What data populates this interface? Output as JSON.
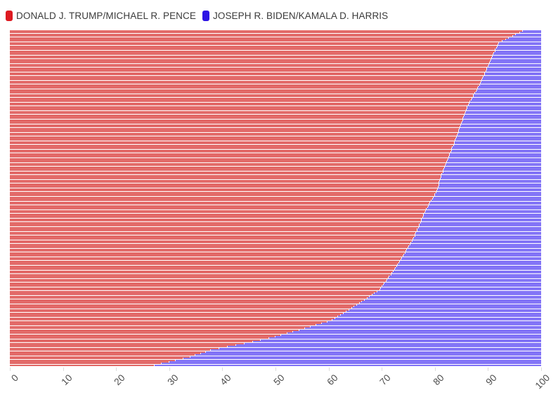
{
  "chart_data": {
    "type": "bar",
    "variant": "100-percent-stacked horizontal bars, one thin bar per row, sorted descending by Trump share",
    "title": "",
    "xlabel": "",
    "ylabel": "",
    "grid": false,
    "legend_position": "top-left",
    "row_count": 200,
    "x_axis": {
      "min": 0,
      "max": 100,
      "tick_step": 10,
      "tick_labels": [
        "0",
        "10",
        "20",
        "30",
        "40",
        "50",
        "60",
        "70",
        "80",
        "90",
        "100"
      ]
    },
    "series": [
      {
        "name": "DONALD J. TRUMP/MICHAEL R. PENCE",
        "color": "#dd1a21",
        "bar_fill": "#ed837f",
        "bar_stroke": "#c21f25",
        "values": [
          96.5,
          95.9,
          95.2,
          94.6,
          93.9,
          93.3,
          92.6,
          92.0,
          91.9,
          91.7,
          91.6,
          91.4,
          91.3,
          91.1,
          91.0,
          90.8,
          90.7,
          90.6,
          90.4,
          90.3,
          90.1,
          90.0,
          89.8,
          89.7,
          89.6,
          89.4,
          89.3,
          89.1,
          89.0,
          88.8,
          88.7,
          88.5,
          88.4,
          88.2,
          88.0,
          87.9,
          87.7,
          87.5,
          87.3,
          87.2,
          87.0,
          86.8,
          86.6,
          86.5,
          86.3,
          86.1,
          86.0,
          85.9,
          85.8,
          85.6,
          85.5,
          85.4,
          85.3,
          85.2,
          85.1,
          85.0,
          84.8,
          84.7,
          84.6,
          84.5,
          84.4,
          84.3,
          84.2,
          84.0,
          83.9,
          83.8,
          83.7,
          83.6,
          83.5,
          83.3,
          83.2,
          83.1,
          83.0,
          82.8,
          82.7,
          82.6,
          82.5,
          82.3,
          82.2,
          82.1,
          82.0,
          81.8,
          81.7,
          81.6,
          81.5,
          81.3,
          81.2,
          81.1,
          81.0,
          80.9,
          80.8,
          80.8,
          80.7,
          80.6,
          80.5,
          80.4,
          80.2,
          80.0,
          79.9,
          79.7,
          79.5,
          79.3,
          79.1,
          78.9,
          78.8,
          78.6,
          78.4,
          78.2,
          78.1,
          77.9,
          77.8,
          77.7,
          77.5,
          77.4,
          77.3,
          77.1,
          77.0,
          76.9,
          76.7,
          76.6,
          76.4,
          76.3,
          76.2,
          76.0,
          75.9,
          75.7,
          75.5,
          75.3,
          75.1,
          74.9,
          74.7,
          74.5,
          74.4,
          74.2,
          74.0,
          73.8,
          73.6,
          73.4,
          73.2,
          73.0,
          72.8,
          72.6,
          72.4,
          72.1,
          71.9,
          71.7,
          71.4,
          71.2,
          71.0,
          70.8,
          70.5,
          70.3,
          70.1,
          69.8,
          69.6,
          69.1,
          68.6,
          68.2,
          67.7,
          67.2,
          66.7,
          66.2,
          65.8,
          65.3,
          64.8,
          64.3,
          63.8,
          63.3,
          62.8,
          62.2,
          61.7,
          61.2,
          60.7,
          59.7,
          58.6,
          57.6,
          56.5,
          55.5,
          54.4,
          53.3,
          52.2,
          51.0,
          49.9,
          48.8,
          47.2,
          45.7,
          44.1,
          42.5,
          41.0,
          39.4,
          37.8,
          36.8,
          35.9,
          34.9,
          33.9,
          32.6,
          31.2,
          29.9,
          28.5,
          27.2
        ]
      },
      {
        "name": "JOSEPH R. BIDEN/KAMALA D. HARRIS",
        "color": "#2c13e4",
        "bar_fill": "#9a8dfb",
        "bar_stroke": "#3d2be8",
        "values": [
          3.5,
          4.1,
          4.8,
          5.4,
          6.1,
          6.7,
          7.4,
          8.0,
          8.1,
          8.3,
          8.4,
          8.6,
          8.7,
          8.9,
          9.0,
          9.2,
          9.3,
          9.4,
          9.6,
          9.7,
          9.9,
          10.0,
          10.2,
          10.3,
          10.4,
          10.6,
          10.7,
          10.9,
          11.0,
          11.2,
          11.3,
          11.5,
          11.6,
          11.8,
          12.0,
          12.1,
          12.3,
          12.5,
          12.7,
          12.8,
          13.0,
          13.2,
          13.4,
          13.5,
          13.7,
          13.9,
          14.0,
          14.1,
          14.2,
          14.4,
          14.5,
          14.6,
          14.7,
          14.8,
          14.9,
          15.0,
          15.2,
          15.3,
          15.4,
          15.5,
          15.6,
          15.7,
          15.8,
          16.0,
          16.1,
          16.2,
          16.3,
          16.4,
          16.5,
          16.7,
          16.8,
          16.9,
          17.0,
          17.2,
          17.3,
          17.4,
          17.5,
          17.7,
          17.8,
          17.9,
          18.0,
          18.2,
          18.3,
          18.4,
          18.5,
          18.7,
          18.8,
          18.9,
          19.0,
          19.1,
          19.2,
          19.2,
          19.3,
          19.4,
          19.5,
          19.6,
          19.8,
          20.0,
          20.1,
          20.3,
          20.5,
          20.7,
          20.9,
          21.1,
          21.2,
          21.4,
          21.6,
          21.8,
          21.9,
          22.1,
          22.2,
          22.3,
          22.5,
          22.6,
          22.7,
          22.9,
          23.0,
          23.1,
          23.3,
          23.4,
          23.6,
          23.7,
          23.8,
          24.0,
          24.1,
          24.3,
          24.5,
          24.7,
          24.9,
          25.1,
          25.3,
          25.5,
          25.6,
          25.8,
          26.0,
          26.2,
          26.4,
          26.6,
          26.8,
          27.0,
          27.2,
          27.4,
          27.6,
          27.9,
          28.1,
          28.3,
          28.6,
          28.8,
          29.0,
          29.2,
          29.5,
          29.7,
          29.9,
          30.2,
          30.4,
          30.9,
          31.4,
          31.8,
          32.3,
          32.8,
          33.3,
          33.8,
          34.2,
          34.7,
          35.2,
          35.7,
          36.2,
          36.7,
          37.2,
          37.8,
          38.3,
          38.8,
          39.3,
          40.3,
          41.4,
          42.4,
          43.5,
          44.5,
          45.6,
          46.7,
          47.8,
          49.0,
          50.1,
          51.2,
          52.8,
          54.3,
          55.9,
          57.5,
          59.0,
          60.6,
          62.2,
          63.2,
          64.1,
          65.1,
          66.1,
          67.4,
          68.8,
          70.1,
          71.5,
          72.8
        ]
      }
    ]
  }
}
